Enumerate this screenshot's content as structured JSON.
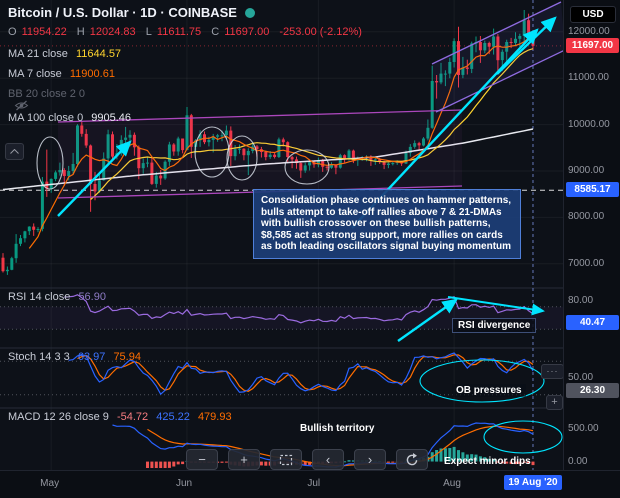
{
  "header": {
    "symbol_title": "Bitcoin / U.S. Dollar · 1D · COINBASE",
    "currency_badge": "USD",
    "ohlc": {
      "o_label": "O",
      "o": "11954.22",
      "h_label": "H",
      "h": "12024.83",
      "l_label": "L",
      "l": "11611.75",
      "c_label": "C",
      "c": "11697.00",
      "change": "-253.00 (-2.12%)"
    }
  },
  "legends": {
    "ma21": {
      "label": "MA 21 close",
      "value": "11644.57"
    },
    "ma7": {
      "label": "MA 7 close",
      "value": "11900.61"
    },
    "bb": {
      "label": "BB 20 close 2 0"
    },
    "ma100": {
      "label": "MA 100 close 0",
      "value": "9905.46"
    },
    "rsi": {
      "label": "RSI 14 close",
      "value": "56.90"
    },
    "stoch": {
      "label": "Stoch 14 3 3",
      "k": "63.97",
      "d": "75.94"
    },
    "macd": {
      "label": "MACD 12 26 close 9",
      "hist": "-54.72",
      "macd": "425.22",
      "signal": "479.93"
    }
  },
  "annotations": {
    "note_box": "Consolidation phase continues on hammer patterns, bulls attempt to take-off rallies above 7 & 21-DMAs with bullish crossover on these bullish patterns, $8,585 act as strong support, more rallies on cards as both leading oscillators signal buying momentum",
    "rsi_divergence": "RSI divergence",
    "ob_pressures": "OB pressures",
    "bullish_territory": "Bullish territory",
    "expect_minor_dips": "Expect minor dips"
  },
  "axis": {
    "price_labels": [
      {
        "text": "12000.00",
        "value": 12000
      },
      {
        "text": "11000.00",
        "value": 11000
      },
      {
        "text": "10000.00",
        "value": 10000
      },
      {
        "text": "9000.00",
        "value": 9000
      },
      {
        "text": "8000.00",
        "value": 8000
      },
      {
        "text": "7000.00",
        "value": 7000
      }
    ],
    "last_price_badge": {
      "text": "11697.00",
      "value": 11697,
      "color": "#f23645"
    },
    "support_badge": {
      "text": "8585.17",
      "value": 8585.17,
      "color": "#2962ff"
    },
    "rsi_labels": [
      {
        "text": "80.00",
        "value": 80
      }
    ],
    "rsi_badge": {
      "text": "40.47",
      "value": 40.47,
      "color": "#2962ff"
    },
    "stoch_labels": [
      {
        "text": "50.00",
        "value": 50
      }
    ],
    "stoch_badge": {
      "text": "26.30",
      "value": 26.3,
      "color": "#50535e"
    },
    "macd_labels": [
      {
        "text": "500.00",
        "value": 500
      },
      {
        "text": "0.00",
        "value": 0
      }
    ],
    "time_labels": [
      {
        "text": "May",
        "index": 11
      },
      {
        "text": "Jun",
        "index": 42
      },
      {
        "text": "Jul",
        "index": 72
      },
      {
        "text": "Aug",
        "index": 103
      }
    ],
    "time_badge": {
      "text": "19 Aug '20",
      "index": 121,
      "color": "#2962ff"
    }
  },
  "pane_buttons": {
    "more_glyph": "···",
    "add_glyph": "+"
  },
  "toolbar": {
    "buttons": [
      {
        "name": "zoom-out",
        "glyph": "−"
      },
      {
        "name": "zoom-in",
        "glyph": "+"
      },
      {
        "name": "fit-content",
        "glyph": ""
      },
      {
        "name": "scroll-left",
        "glyph": "‹"
      },
      {
        "name": "scroll-right",
        "glyph": "›"
      },
      {
        "name": "reset-view",
        "glyph": ""
      }
    ]
  },
  "chart_data": [
    {
      "type": "candlestick",
      "name": "BTC/USD 1D",
      "ylim": [
        6520,
        12600
      ],
      "up_color": "#089981",
      "down_color": "#f23645",
      "overlays": [
        {
          "name": "MA 7",
          "period": 7,
          "color": "#ff6d00"
        },
        {
          "name": "MA 21",
          "period": 21,
          "color": "#ffd52e"
        },
        {
          "name": "MA 100",
          "color": "#e8eaf0",
          "points": [
            [
              0,
              8600
            ],
            [
              30,
              8900
            ],
            [
              60,
              9150
            ],
            [
              85,
              9300
            ],
            [
              105,
              9600
            ],
            [
              121,
              9905
            ]
          ]
        }
      ],
      "candles": [
        [
          7130,
          7230,
          6810,
          6840
        ],
        [
          6840,
          6940,
          6760,
          6870
        ],
        [
          6870,
          7150,
          6860,
          7120
        ],
        [
          7120,
          7640,
          7020,
          7430
        ],
        [
          7430,
          7620,
          7380,
          7550
        ],
        [
          7550,
          7710,
          7460,
          7700
        ],
        [
          7700,
          7810,
          7620,
          7800
        ],
        [
          7800,
          7870,
          7600,
          7730
        ],
        [
          7730,
          7790,
          7680,
          7750
        ],
        [
          7750,
          8870,
          7700,
          8770
        ],
        [
          8770,
          9460,
          8440,
          8620
        ],
        [
          8620,
          8840,
          8530,
          8830
        ],
        [
          8830,
          9010,
          8780,
          8970
        ],
        [
          8970,
          9180,
          8900,
          9020
        ],
        [
          9020,
          9060,
          8680,
          8890
        ],
        [
          8890,
          9110,
          8800,
          9000
        ],
        [
          9000,
          9390,
          8930,
          9150
        ],
        [
          9150,
          10010,
          9090,
          9980
        ],
        [
          9980,
          10070,
          9740,
          9800
        ],
        [
          9800,
          9900,
          9500,
          9550
        ],
        [
          9550,
          9570,
          8120,
          8720
        ],
        [
          8720,
          8980,
          8370,
          8560
        ],
        [
          8560,
          8950,
          8530,
          8800
        ],
        [
          8800,
          9400,
          8790,
          9270
        ],
        [
          9270,
          9890,
          9160,
          9790
        ],
        [
          9790,
          9850,
          9210,
          9310
        ],
        [
          9310,
          9580,
          9250,
          9380
        ],
        [
          9380,
          9770,
          9330,
          9670
        ],
        [
          9670,
          9950,
          9600,
          9720
        ],
        [
          9720,
          9880,
          9530,
          9780
        ],
        [
          9780,
          9830,
          9330,
          9510
        ],
        [
          9510,
          9550,
          8820,
          9060
        ],
        [
          9060,
          9270,
          8940,
          9170
        ],
        [
          9170,
          9310,
          9080,
          9180
        ],
        [
          9180,
          9300,
          8700,
          8720
        ],
        [
          8720,
          8980,
          8640,
          8900
        ],
        [
          8900,
          9020,
          8700,
          8840
        ],
        [
          8840,
          9230,
          8810,
          9200
        ],
        [
          9200,
          9630,
          9110,
          9570
        ],
        [
          9570,
          9600,
          9330,
          9420
        ],
        [
          9420,
          9740,
          9330,
          9700
        ],
        [
          9700,
          9700,
          9380,
          9450
        ],
        [
          9450,
          10380,
          9450,
          10200
        ],
        [
          10200,
          10230,
          9280,
          9520
        ],
        [
          9520,
          9690,
          9380,
          9660
        ],
        [
          9660,
          9880,
          9520,
          9790
        ],
        [
          9790,
          9850,
          9580,
          9620
        ],
        [
          9620,
          9740,
          9530,
          9670
        ],
        [
          9670,
          9800,
          9400,
          9740
        ],
        [
          9740,
          9800,
          9630,
          9770
        ],
        [
          9770,
          9870,
          9640,
          9770
        ],
        [
          9770,
          9980,
          9690,
          9870
        ],
        [
          9870,
          9960,
          9110,
          9320
        ],
        [
          9320,
          9560,
          9230,
          9470
        ],
        [
          9470,
          9570,
          9370,
          9480
        ],
        [
          9480,
          9490,
          9230,
          9340
        ],
        [
          9340,
          9490,
          8910,
          9430
        ],
        [
          9430,
          9590,
          9380,
          9530
        ],
        [
          9530,
          9560,
          9310,
          9470
        ],
        [
          9470,
          9520,
          9290,
          9410
        ],
        [
          9410,
          9440,
          9230,
          9300
        ],
        [
          9300,
          9430,
          9260,
          9350
        ],
        [
          9350,
          9410,
          9270,
          9300
        ],
        [
          9300,
          9720,
          9280,
          9680
        ],
        [
          9680,
          9720,
          9530,
          9620
        ],
        [
          9620,
          9640,
          9190,
          9300
        ],
        [
          9300,
          9330,
          9060,
          9250
        ],
        [
          9250,
          9310,
          9050,
          9170
        ],
        [
          9170,
          9200,
          8850,
          9010
        ],
        [
          9010,
          9180,
          8960,
          9120
        ],
        [
          9120,
          9230,
          9010,
          9190
        ],
        [
          9190,
          9230,
          9070,
          9140
        ],
        [
          9140,
          9290,
          9080,
          9230
        ],
        [
          9230,
          9260,
          8980,
          9090
        ],
        [
          9090,
          9130,
          9010,
          9070
        ],
        [
          9070,
          9190,
          9050,
          9130
        ],
        [
          9130,
          9140,
          8930,
          9070
        ],
        [
          9070,
          9370,
          9050,
          9340
        ],
        [
          9340,
          9360,
          9180,
          9250
        ],
        [
          9250,
          9470,
          9220,
          9440
        ],
        [
          9440,
          9460,
          9170,
          9230
        ],
        [
          9230,
          9310,
          9110,
          9280
        ],
        [
          9280,
          9320,
          9220,
          9290
        ],
        [
          9290,
          9340,
          9210,
          9300
        ],
        [
          9300,
          9340,
          9110,
          9240
        ],
        [
          9240,
          9280,
          9130,
          9250
        ],
        [
          9250,
          9280,
          9150,
          9200
        ],
        [
          9200,
          9220,
          9040,
          9130
        ],
        [
          9130,
          9180,
          9060,
          9160
        ],
        [
          9160,
          9220,
          9120,
          9170
        ],
        [
          9170,
          9230,
          9130,
          9210
        ],
        [
          9210,
          9220,
          9110,
          9160
        ],
        [
          9160,
          9440,
          9150,
          9390
        ],
        [
          9390,
          9580,
          9310,
          9520
        ],
        [
          9520,
          9660,
          9480,
          9600
        ],
        [
          9600,
          9630,
          9440,
          9550
        ],
        [
          9550,
          9730,
          9530,
          9700
        ],
        [
          9700,
          10110,
          9660,
          9930
        ],
        [
          9930,
          11270,
          9910,
          10940
        ],
        [
          10940,
          11070,
          10560,
          10910
        ],
        [
          10910,
          11330,
          10870,
          11100
        ],
        [
          11100,
          11170,
          10830,
          11100
        ],
        [
          11100,
          11440,
          11000,
          11350
        ],
        [
          11350,
          11860,
          11230,
          11800
        ],
        [
          11800,
          12110,
          10800,
          11070
        ],
        [
          11070,
          11460,
          11000,
          11230
        ],
        [
          11230,
          11400,
          11080,
          11200
        ],
        [
          11200,
          11790,
          11110,
          11750
        ],
        [
          11750,
          11900,
          11560,
          11780
        ],
        [
          11780,
          11910,
          11330,
          11600
        ],
        [
          11600,
          11810,
          11540,
          11760
        ],
        [
          11760,
          11790,
          11520,
          11680
        ],
        [
          11680,
          12070,
          11510,
          11900
        ],
        [
          11900,
          11950,
          11150,
          11390
        ],
        [
          11390,
          11620,
          11160,
          11570
        ],
        [
          11570,
          11830,
          11310,
          11780
        ],
        [
          11780,
          11870,
          11650,
          11760
        ],
        [
          11760,
          11990,
          11690,
          11850
        ],
        [
          11850,
          11960,
          11680,
          11910
        ],
        [
          11910,
          12470,
          11770,
          12250
        ],
        [
          12250,
          12390,
          11830,
          11950
        ],
        [
          11954.22,
          12024.83,
          11611.75,
          11697.0
        ]
      ]
    },
    {
      "type": "line",
      "name": "RSI 14",
      "period": 14,
      "levels": [
        70,
        30
      ],
      "ylim": [
        0,
        100
      ],
      "color": "#9b6be0"
    },
    {
      "type": "line",
      "name": "Stochastic 14 3 3",
      "levels": [
        80,
        20
      ],
      "ylim": [
        0,
        100
      ],
      "k_color": "#2962ff",
      "d_color": "#ff6d00"
    },
    {
      "type": "macd",
      "name": "MACD 12 26 9",
      "fast": 12,
      "slow": 26,
      "signal": 9,
      "ylim": [
        -100,
        800
      ],
      "macd_color": "#2962ff",
      "signal_color": "#ff6d00",
      "hist_up": "#26a69a",
      "hist_down": "#ef5350"
    }
  ]
}
